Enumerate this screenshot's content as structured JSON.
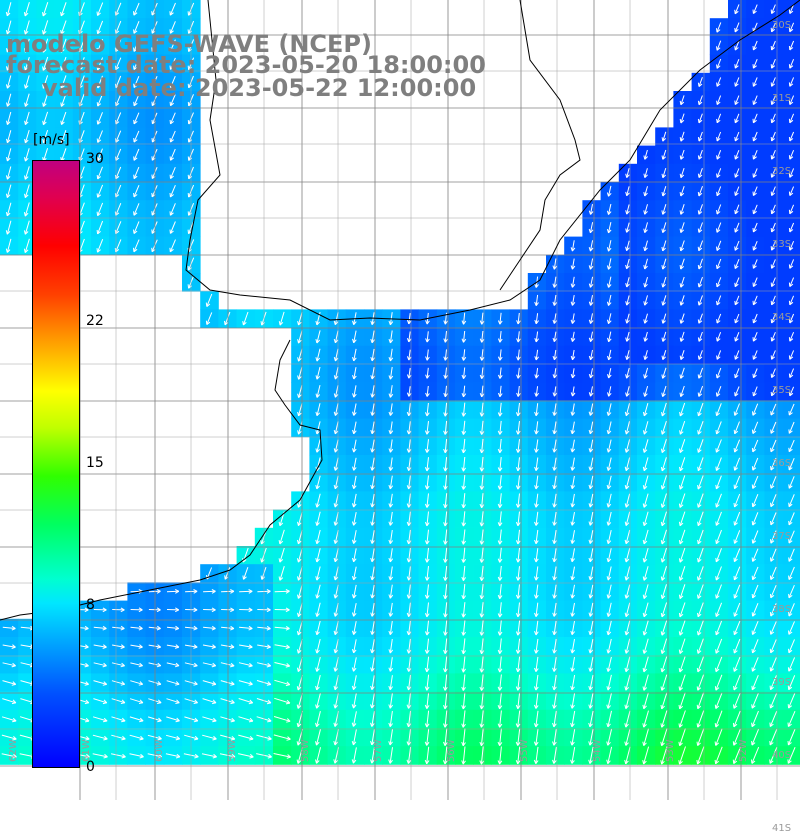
{
  "title": {
    "line1": "modelo GEFS-WAVE (NCEP)",
    "line2": "forecast date: 2023-05-20 18:00:00",
    "line3": "valid date: 2023-05-22 12:00:00"
  },
  "colorbar": {
    "unit": "[m/s]",
    "ticks": [
      {
        "label": "30",
        "value": 30
      },
      {
        "label": "22",
        "value": 22
      },
      {
        "label": "15",
        "value": 15
      },
      {
        "label": "8",
        "value": 8
      },
      {
        "label": "0",
        "value": 0
      }
    ],
    "min": 0,
    "max": 30
  },
  "map": {
    "variable": "wind speed",
    "lat_labels": [
      "30S",
      "31S",
      "32S",
      "33S",
      "34S",
      "35S",
      "36S",
      "37S",
      "38S",
      "39S",
      "40S",
      "41S"
    ],
    "lon_labels": [
      "62W",
      "61W",
      "60W",
      "59W",
      "58W",
      "57W",
      "56W",
      "55W",
      "54W",
      "53W",
      "52W",
      "51W"
    ],
    "colors": {
      "land": "#ffffff",
      "grid": "#808080",
      "coast": "#000000",
      "arrow": "#ffffff",
      "title": "#7f7f7f"
    },
    "wind_field_summary": "southwestward flow over the ocean, westward-to-eastward near the southwest coast",
    "speed_range_ms": [
      3,
      14
    ]
  }
}
